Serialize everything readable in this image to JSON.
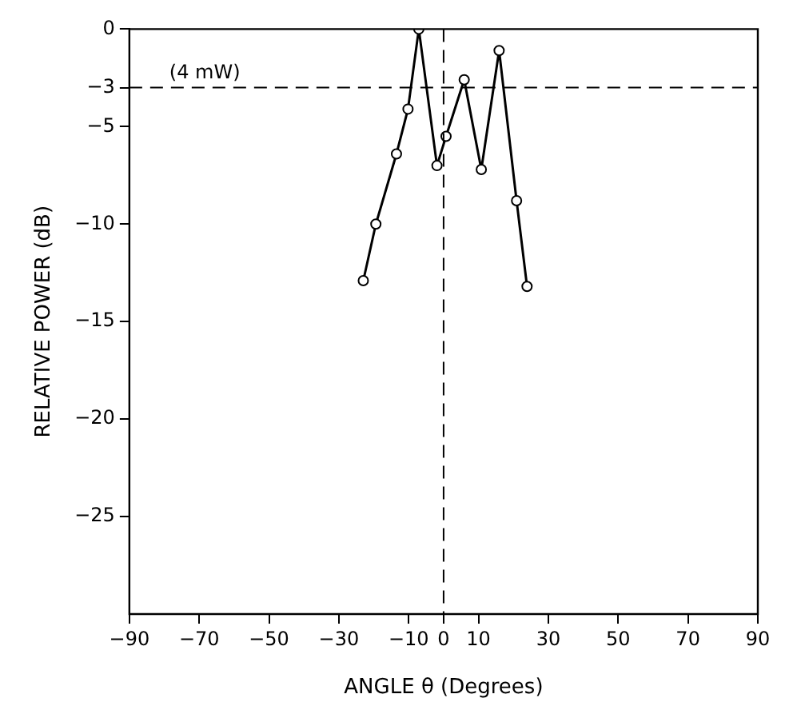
{
  "chart_data": {
    "type": "line",
    "xlabel": "ANGLE θ (Degrees)",
    "ylabel": "RELATIVE POWER (dB)",
    "series": [
      {
        "color": "#000000",
        "x": [
          -23,
          -19.4,
          -13.5,
          -10.2,
          -7.1,
          -1.9,
          0.7,
          5.9,
          10.8,
          15.9,
          20.9,
          23.9
        ],
        "values": [
          -12.9,
          -10,
          -6.4,
          -4.1,
          0,
          -7,
          -5.5,
          -2.6,
          -7.2,
          -1.1,
          -8.8,
          -13.2
        ]
      }
    ],
    "xlim": [
      -90,
      90
    ],
    "xticks": [
      -90,
      -70,
      -50,
      -30,
      -10,
      0,
      10,
      30,
      50,
      70,
      90
    ],
    "ylim": [
      -30,
      0
    ],
    "yticks": [
      0,
      -3,
      -5,
      -10,
      -15,
      -20,
      -25
    ],
    "ref_lines": [
      {
        "axis": "y",
        "value": -3,
        "label": "(4 mW)",
        "line_style": "dashed"
      },
      {
        "axis": "x",
        "value": 0,
        "label": null,
        "line_style": "dashed"
      }
    ],
    "grid": false,
    "legend": false,
    "marker": "circle",
    "line_style": "solid"
  }
}
